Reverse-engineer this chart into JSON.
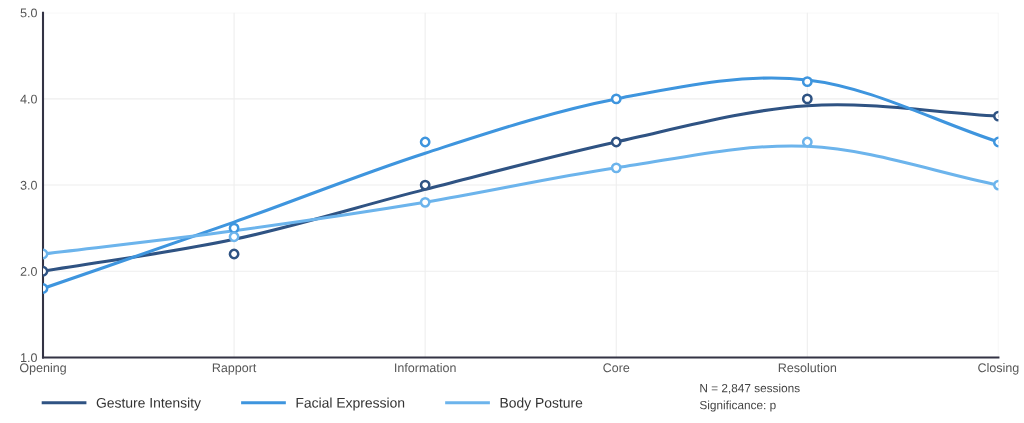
{
  "chart_data": {
    "type": "line",
    "categories": [
      "Opening",
      "Rapport",
      "Information",
      "Core",
      "Resolution",
      "Closing"
    ],
    "series": [
      {
        "name": "Gesture Intensity",
        "color": "#2f5383",
        "values": [
          2.0,
          2.37,
          2.95,
          3.5,
          3.92,
          3.8
        ]
      },
      {
        "name": "Facial Expression",
        "color": "#3e95de",
        "values": [
          1.8,
          2.57,
          3.37,
          4.0,
          4.22,
          3.5
        ]
      },
      {
        "name": "Body Posture",
        "color": "#6cb4ec",
        "values": [
          2.2,
          2.47,
          2.8,
          3.2,
          3.45,
          3.0
        ]
      },
      {
        "color": "#2f5383",
        "type": "scatter",
        "marker": "circle",
        "values": [
          2.0,
          2.2,
          3.0,
          3.5,
          4.0,
          3.8
        ]
      },
      {
        "color": "#3e95de",
        "type": "scatter",
        "marker": "circle",
        "values": [
          1.8,
          2.5,
          3.5,
          4.0,
          4.2,
          3.5
        ]
      },
      {
        "color": "#6cb4ec",
        "type": "scatter",
        "marker": "circle",
        "values": [
          2.2,
          2.4,
          2.8,
          3.2,
          3.5,
          3.0
        ]
      }
    ],
    "ylim": [
      1.0,
      5.0
    ],
    "yticks": [
      {
        "value": 1,
        "label": "1.0"
      },
      {
        "value": 2,
        "label": "2.0"
      },
      {
        "value": 3,
        "label": "3.0"
      },
      {
        "value": 4,
        "label": "4.0"
      },
      {
        "value": 5,
        "label": "5.0"
      }
    ],
    "grid": true,
    "legend": "bottom",
    "marker": "none",
    "annotations": [
      "N = 2,847 sessions",
      "Significance: p"
    ]
  }
}
